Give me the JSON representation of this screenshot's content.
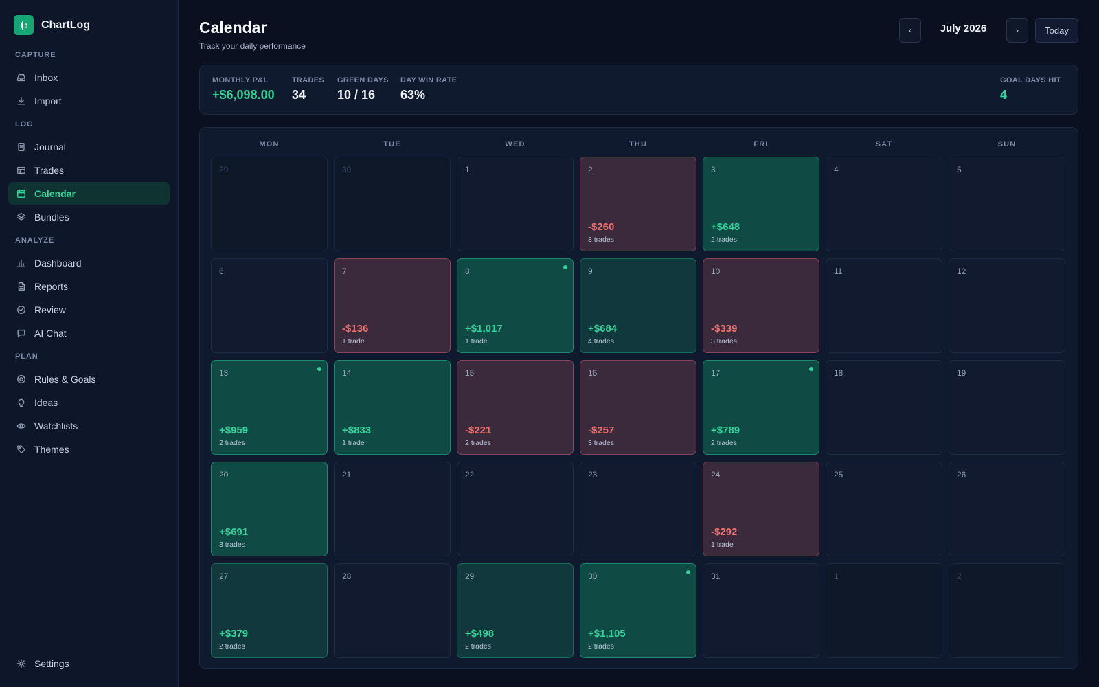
{
  "app": {
    "name": "ChartLog"
  },
  "sidebar": {
    "sections": [
      {
        "label": "CAPTURE",
        "items": [
          {
            "label": "Inbox",
            "icon": "inbox-icon"
          },
          {
            "label": "Import",
            "icon": "download-icon"
          }
        ]
      },
      {
        "label": "LOG",
        "items": [
          {
            "label": "Journal",
            "icon": "journal-icon"
          },
          {
            "label": "Trades",
            "icon": "table-icon"
          },
          {
            "label": "Calendar",
            "icon": "calendar-icon",
            "active": true
          },
          {
            "label": "Bundles",
            "icon": "layers-icon"
          }
        ]
      },
      {
        "label": "ANALYZE",
        "items": [
          {
            "label": "Dashboard",
            "icon": "bar-chart-icon"
          },
          {
            "label": "Reports",
            "icon": "document-icon"
          },
          {
            "label": "Review",
            "icon": "check-circle-icon"
          },
          {
            "label": "AI Chat",
            "icon": "chat-icon"
          }
        ]
      },
      {
        "label": "PLAN",
        "items": [
          {
            "label": "Rules & Goals",
            "icon": "target-icon"
          },
          {
            "label": "Ideas",
            "icon": "lightbulb-icon"
          },
          {
            "label": "Watchlists",
            "icon": "eye-icon"
          },
          {
            "label": "Themes",
            "icon": "tag-icon"
          }
        ]
      }
    ],
    "settings_label": "Settings"
  },
  "header": {
    "title": "Calendar",
    "subtitle": "Track your daily performance",
    "month": "July 2026",
    "prev_label": "‹",
    "next_label": "›",
    "today_label": "Today"
  },
  "stats": {
    "monthly_pnl_label": "MONTHLY P&L",
    "monthly_pnl": "+$6,098.00",
    "trades_label": "TRADES",
    "trades": "34",
    "green_days_label": "GREEN DAYS",
    "green_days": "10 / 16",
    "win_rate_label": "DAY WIN RATE",
    "win_rate": "63%",
    "goal_days_label": "GOAL DAYS HIT",
    "goal_days": "4"
  },
  "calendar": {
    "weekdays": [
      "MON",
      "TUE",
      "WED",
      "THU",
      "FRI",
      "SAT",
      "SUN"
    ],
    "colors": {
      "win": "#34d399",
      "loss": "#f0706f"
    },
    "weeks": [
      [
        {
          "date": "29",
          "muted": true
        },
        {
          "date": "30",
          "muted": true
        },
        {
          "date": "1"
        },
        {
          "date": "2",
          "pnl": "-$260",
          "trades": "3 trades",
          "type": "loss"
        },
        {
          "date": "3",
          "pnl": "+$648",
          "trades": "2 trades",
          "type": "win"
        },
        {
          "date": "4"
        },
        {
          "date": "5"
        }
      ],
      [
        {
          "date": "6"
        },
        {
          "date": "7",
          "pnl": "-$136",
          "trades": "1 trade",
          "type": "loss"
        },
        {
          "date": "8",
          "pnl": "+$1,017",
          "trades": "1 trade",
          "type": "win",
          "goal": true
        },
        {
          "date": "9",
          "pnl": "+$684",
          "trades": "4 trades",
          "type": "win-dim"
        },
        {
          "date": "10",
          "pnl": "-$339",
          "trades": "3 trades",
          "type": "loss"
        },
        {
          "date": "11"
        },
        {
          "date": "12"
        }
      ],
      [
        {
          "date": "13",
          "pnl": "+$959",
          "trades": "2 trades",
          "type": "win",
          "goal": true
        },
        {
          "date": "14",
          "pnl": "+$833",
          "trades": "1 trade",
          "type": "win"
        },
        {
          "date": "15",
          "pnl": "-$221",
          "trades": "2 trades",
          "type": "loss"
        },
        {
          "date": "16",
          "pnl": "-$257",
          "trades": "3 trades",
          "type": "loss"
        },
        {
          "date": "17",
          "pnl": "+$789",
          "trades": "2 trades",
          "type": "win",
          "goal": true
        },
        {
          "date": "18"
        },
        {
          "date": "19"
        }
      ],
      [
        {
          "date": "20",
          "pnl": "+$691",
          "trades": "3 trades",
          "type": "win"
        },
        {
          "date": "21"
        },
        {
          "date": "22"
        },
        {
          "date": "23"
        },
        {
          "date": "24",
          "pnl": "-$292",
          "trades": "1 trade",
          "type": "loss"
        },
        {
          "date": "25"
        },
        {
          "date": "26"
        }
      ],
      [
        {
          "date": "27",
          "pnl": "+$379",
          "trades": "2 trades",
          "type": "win-dim"
        },
        {
          "date": "28"
        },
        {
          "date": "29",
          "pnl": "+$498",
          "trades": "2 trades",
          "type": "win-dim"
        },
        {
          "date": "30",
          "pnl": "+$1,105",
          "trades": "2 trades",
          "type": "win",
          "goal": true
        },
        {
          "date": "31"
        },
        {
          "date": "1",
          "muted": true
        },
        {
          "date": "2",
          "muted": true
        }
      ]
    ]
  }
}
